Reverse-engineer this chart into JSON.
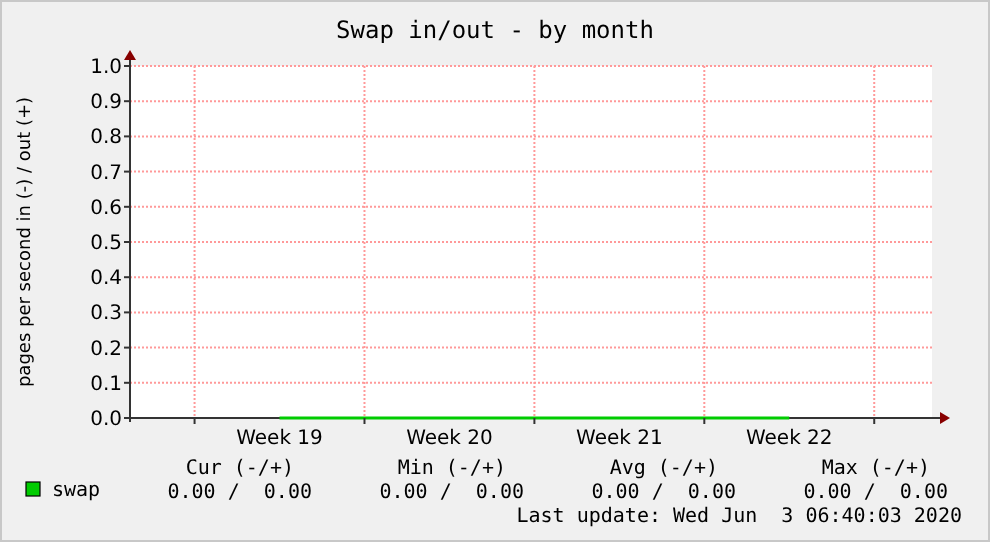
{
  "chart_data": {
    "type": "line",
    "title": "Swap in/out - by month",
    "ylabel": "pages per second in (-) / out (+)",
    "categories": [
      "Week 19",
      "Week 20",
      "Week 21",
      "Week 22"
    ],
    "series": [
      {
        "name": "swap",
        "color": "#00cc00",
        "values": [
          0,
          0,
          0,
          0
        ]
      }
    ],
    "ylim": [
      0,
      1
    ],
    "yticks": [
      {
        "value": 0,
        "label": "0.0"
      },
      0.1,
      0.2,
      0.3,
      0.4,
      0.5,
      0.6,
      0.7,
      0.8,
      0.9,
      {
        "value": 1,
        "label": "1.0"
      }
    ],
    "grid": true,
    "legend": "bottom left",
    "annotations": [
      "Cur (-/+)",
      "Min (-/+)",
      "Avg (-/+)",
      "Max (-/+)",
      "0.00 /  0.00",
      "0.00 /  0.00",
      "0.00 /  0.00",
      "0.00 /  0.00",
      "Last update: Wed Jun  3 06:40:03 2020"
    ]
  }
}
